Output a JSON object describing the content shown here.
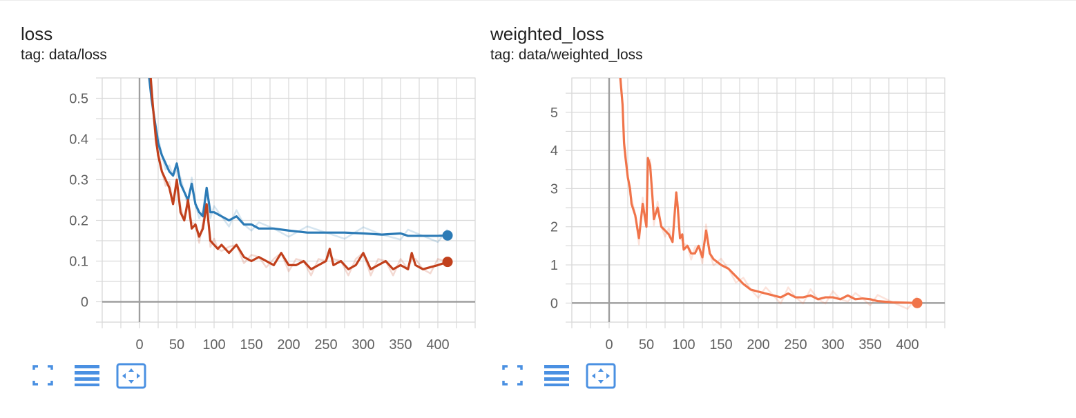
{
  "colors": {
    "blue": "#2c7bb6",
    "red": "#c1401c",
    "orange": "#f0744a",
    "grid": "#d9d9d9",
    "axis": "#9e9e9e",
    "toolbar_icon": "#4a90e2"
  },
  "toolbar_icons": [
    "fullscreen-icon",
    "list-icon",
    "fit-domain-icon"
  ],
  "chart_data": [
    {
      "type": "line",
      "title": "loss",
      "subtitle": "tag: data/loss",
      "xlim": [
        -50,
        450
      ],
      "ylim": [
        -0.05,
        0.55
      ],
      "x_ticks": [
        "0",
        "50",
        "100",
        "150",
        "200",
        "250",
        "300",
        "350",
        "400"
      ],
      "y_ticks": [
        "0",
        "0.1",
        "0.2",
        "0.3",
        "0.4",
        "0.5"
      ],
      "grid": true,
      "series": [
        {
          "color": "#2c7bb6",
          "x": [
            13,
            16,
            20,
            25,
            30,
            35,
            40,
            45,
            50,
            55,
            60,
            65,
            70,
            75,
            80,
            85,
            90,
            95,
            100,
            110,
            120,
            130,
            140,
            150,
            160,
            180,
            200,
            225,
            250,
            275,
            300,
            325,
            350,
            360,
            380,
            400,
            413
          ],
          "y": [
            0.55,
            0.5,
            0.45,
            0.39,
            0.36,
            0.34,
            0.32,
            0.31,
            0.34,
            0.29,
            0.27,
            0.25,
            0.29,
            0.24,
            0.22,
            0.21,
            0.28,
            0.22,
            0.22,
            0.21,
            0.2,
            0.21,
            0.19,
            0.19,
            0.18,
            0.18,
            0.175,
            0.17,
            0.17,
            0.17,
            0.168,
            0.165,
            0.168,
            0.162,
            0.162,
            0.162,
            0.163
          ]
        },
        {
          "color": "#c1401c",
          "x": [
            15,
            18,
            22,
            25,
            30,
            35,
            40,
            45,
            50,
            55,
            60,
            65,
            70,
            75,
            80,
            85,
            90,
            95,
            100,
            105,
            110,
            120,
            130,
            140,
            150,
            160,
            170,
            180,
            190,
            200,
            210,
            220,
            230,
            240,
            250,
            255,
            260,
            270,
            280,
            290,
            300,
            310,
            320,
            330,
            340,
            350,
            360,
            365,
            370,
            380,
            390,
            400,
            413
          ],
          "y": [
            0.55,
            0.48,
            0.4,
            0.36,
            0.32,
            0.3,
            0.28,
            0.24,
            0.3,
            0.22,
            0.2,
            0.25,
            0.18,
            0.19,
            0.16,
            0.18,
            0.24,
            0.15,
            0.14,
            0.13,
            0.14,
            0.12,
            0.14,
            0.11,
            0.1,
            0.11,
            0.1,
            0.09,
            0.12,
            0.09,
            0.09,
            0.1,
            0.08,
            0.09,
            0.1,
            0.13,
            0.09,
            0.1,
            0.08,
            0.09,
            0.12,
            0.08,
            0.09,
            0.1,
            0.08,
            0.09,
            0.08,
            0.12,
            0.09,
            0.08,
            0.085,
            0.09,
            0.098
          ]
        }
      ]
    },
    {
      "type": "line",
      "title": "weighted_loss",
      "subtitle": "tag: data/weighted_loss",
      "xlim": [
        -50,
        450
      ],
      "ylim": [
        -0.5,
        5.9
      ],
      "x_ticks": [
        "0",
        "50",
        "100",
        "150",
        "200",
        "250",
        "300",
        "350",
        "400"
      ],
      "y_ticks": [
        "0",
        "1",
        "2",
        "3",
        "4",
        "5"
      ],
      "grid": true,
      "series": [
        {
          "color": "#f0744a",
          "x": [
            15,
            18,
            20,
            22,
            25,
            28,
            30,
            35,
            40,
            45,
            50,
            52,
            55,
            58,
            60,
            65,
            70,
            75,
            80,
            85,
            90,
            92,
            95,
            98,
            100,
            105,
            110,
            115,
            120,
            125,
            130,
            135,
            140,
            150,
            160,
            170,
            180,
            190,
            200,
            210,
            220,
            230,
            240,
            250,
            260,
            270,
            280,
            290,
            300,
            310,
            320,
            330,
            340,
            350,
            360,
            380,
            400,
            413
          ],
          "y": [
            5.9,
            5.2,
            4.2,
            3.8,
            3.3,
            3.0,
            2.6,
            2.3,
            1.7,
            2.6,
            2.0,
            3.8,
            3.6,
            2.8,
            2.2,
            2.5,
            2.0,
            1.9,
            1.8,
            1.6,
            2.9,
            2.5,
            1.7,
            1.8,
            1.4,
            1.5,
            1.3,
            1.3,
            1.5,
            1.2,
            1.9,
            1.3,
            1.15,
            1.0,
            0.9,
            0.7,
            0.5,
            0.35,
            0.3,
            0.25,
            0.2,
            0.15,
            0.25,
            0.15,
            0.15,
            0.2,
            0.1,
            0.15,
            0.15,
            0.1,
            0.2,
            0.1,
            0.12,
            0.1,
            0.05,
            0.02,
            0.01,
            0.0
          ]
        }
      ]
    }
  ]
}
